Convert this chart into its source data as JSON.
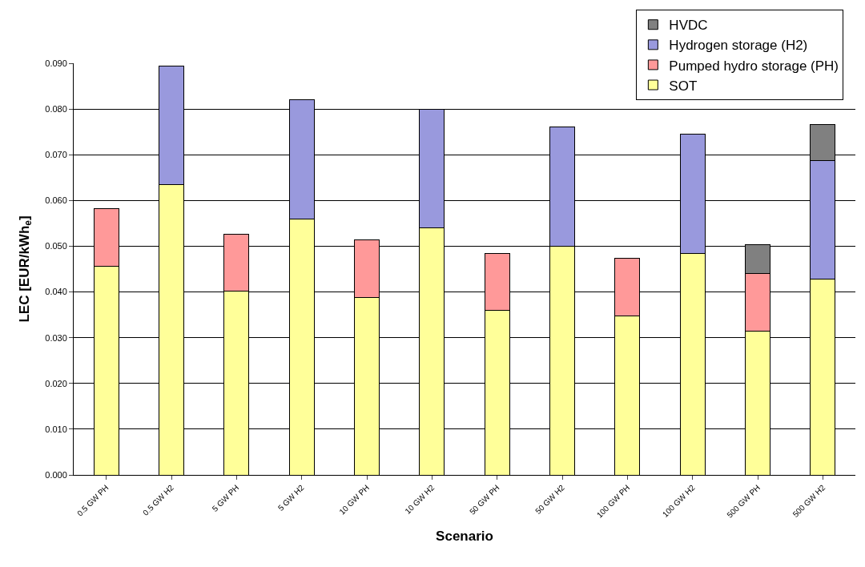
{
  "chart_data": {
    "type": "bar",
    "stacked": true,
    "xlabel": "Scenario",
    "ylabel": "LEC [EUR/kWh$_{e}$]",
    "categories": [
      "0.5 GW PH",
      "0.5 GW H2",
      "5 GW PH",
      "5 GW H2",
      "10 GW PH",
      "10 GW H2",
      "50 GW PH",
      "50 GW H2",
      "100 GW PH",
      "100 GW H2",
      "500 GW PH",
      "500 GW H2"
    ],
    "series": [
      {
        "name": "SOT",
        "color": "#ffff99",
        "values": [
          0.0457,
          0.0634,
          0.0402,
          0.056,
          0.0388,
          0.0541,
          0.0359,
          0.05,
          0.0348,
          0.0485,
          0.0315,
          0.0428
        ]
      },
      {
        "name": "Pumped hydro storage (PH)",
        "color": "#ff9999",
        "values": [
          0.0126,
          null,
          0.0125,
          null,
          0.0126,
          null,
          0.0126,
          null,
          0.0126,
          null,
          0.0126,
          null
        ]
      },
      {
        "name": "Hydrogen storage (H2)",
        "color": "#9999dd",
        "values": [
          null,
          0.026,
          null,
          0.0261,
          null,
          0.0259,
          null,
          0.0261,
          null,
          0.026,
          null,
          0.0259
        ]
      },
      {
        "name": "HVDC",
        "color": "#808080",
        "values": [
          null,
          null,
          null,
          null,
          null,
          null,
          null,
          null,
          null,
          null,
          0.0062,
          0.0079
        ]
      }
    ],
    "ylim": [
      0,
      0.09
    ],
    "yticks": [
      {
        "value": 0,
        "label": "0.000"
      },
      {
        "value": 0.01,
        "label": "0.010"
      },
      {
        "value": 0.02,
        "label": "0.020"
      },
      {
        "value": 0.03,
        "label": "0.030"
      },
      {
        "value": 0.04,
        "label": "0.040"
      },
      {
        "value": 0.05,
        "label": "0.050"
      },
      {
        "value": 0.06,
        "label": "0.060"
      },
      {
        "value": 0.07,
        "label": "0.070"
      },
      {
        "value": 0.08,
        "label": "0.080"
      },
      {
        "value": 0.09,
        "label": "0.090"
      }
    ],
    "grid": "y",
    "legend": "top right"
  }
}
